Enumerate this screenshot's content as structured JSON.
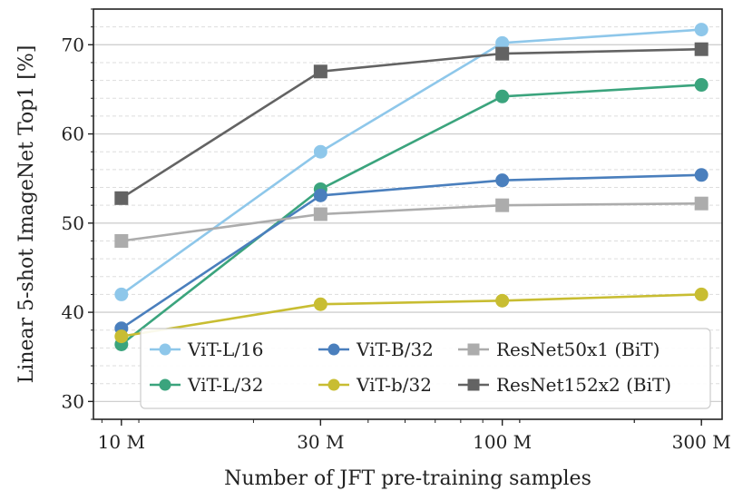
{
  "chart_data": {
    "type": "line",
    "xlabel": "Number of JFT pre-training samples",
    "ylabel": "Linear 5-shot ImageNet Top1 [%]",
    "x_scale": "log",
    "x": [
      9,
      30,
      90,
      300
    ],
    "x_tick_labels": [
      "10 M",
      "30 M",
      "100 M",
      "300 M"
    ],
    "ylim": [
      28,
      74
    ],
    "y_ticks": [
      30,
      40,
      50,
      60,
      70
    ],
    "grid": true,
    "legend_position": "lower-right",
    "series": [
      {
        "name": "ViT-L/16",
        "color": "#8ec7ea",
        "marker": "circle",
        "values": [
          42.0,
          58.0,
          70.2,
          71.7
        ]
      },
      {
        "name": "ViT-L/32",
        "color": "#3ba47d",
        "marker": "circle",
        "values": [
          36.4,
          53.8,
          64.2,
          65.5
        ]
      },
      {
        "name": "ViT-B/32",
        "color": "#4a7fbd",
        "marker": "circle",
        "values": [
          38.2,
          53.1,
          54.8,
          55.4
        ]
      },
      {
        "name": "ViT-b/32",
        "color": "#c8bd32",
        "marker": "circle",
        "values": [
          37.3,
          40.9,
          41.3,
          42.0
        ]
      },
      {
        "name": "ResNet50x1 (BiT)",
        "color": "#acacac",
        "marker": "square",
        "values": [
          48.0,
          51.0,
          52.0,
          52.2
        ]
      },
      {
        "name": "ResNet152x2 (BiT)",
        "color": "#636363",
        "marker": "square",
        "values": [
          52.8,
          67.0,
          69.0,
          69.5
        ]
      }
    ]
  }
}
